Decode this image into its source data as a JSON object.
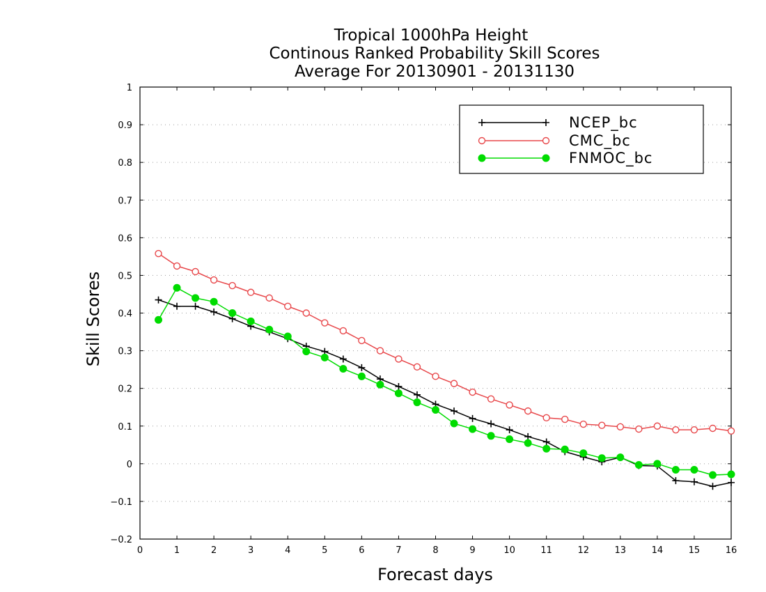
{
  "chart_data": {
    "type": "line",
    "title": [
      "Tropical 1000hPa Height",
      "Continous Ranked Probability Skill Scores",
      "Average For 20130901 - 20131130"
    ],
    "xlabel": "Forecast days",
    "ylabel": "Skill Scores",
    "xlim": [
      0,
      16
    ],
    "ylim": [
      -0.2,
      1
    ],
    "xticks": [
      0,
      1,
      2,
      3,
      4,
      5,
      6,
      7,
      8,
      9,
      10,
      11,
      12,
      13,
      14,
      15,
      16
    ],
    "xtick_labels": [
      "0",
      "1",
      "2",
      "3",
      "4",
      "5",
      "6",
      "7",
      "8",
      "9",
      "10",
      "11",
      "12",
      "13",
      "14",
      "15",
      "16"
    ],
    "yticks": [
      -0.2,
      -0.1,
      0,
      0.1,
      0.2,
      0.3,
      0.4,
      0.5,
      0.6,
      0.7,
      0.8,
      0.9,
      1
    ],
    "ytick_labels": [
      "−0.2",
      "−0.1",
      "0",
      "0.1",
      "0.2",
      "0.3",
      "0.4",
      "0.5",
      "0.6",
      "0.7",
      "0.8",
      "0.9",
      "1"
    ],
    "grid": "horizontal dotted",
    "legend_position": "top-right",
    "x": [
      0.5,
      1,
      1.5,
      2,
      2.5,
      3,
      3.5,
      4,
      4.5,
      5,
      5.5,
      6,
      6.5,
      7,
      7.5,
      8,
      8.5,
      9,
      9.5,
      10,
      10.5,
      11,
      11.5,
      12,
      12.5,
      13,
      13.5,
      14,
      14.5,
      15,
      15.5,
      16
    ],
    "series": [
      {
        "name": "NCEP_bc",
        "color": "#000000",
        "marker": "plus",
        "values": [
          0.435,
          0.418,
          0.418,
          0.403,
          0.385,
          0.365,
          0.35,
          0.332,
          0.312,
          0.298,
          0.278,
          0.255,
          0.225,
          0.205,
          0.183,
          0.158,
          0.14,
          0.12,
          0.106,
          0.09,
          0.072,
          0.058,
          0.032,
          0.018,
          0.005,
          0.017,
          -0.005,
          -0.006,
          -0.045,
          -0.048,
          -0.06,
          -0.05
        ]
      },
      {
        "name": "CMC_bc",
        "color": "#e8474a",
        "marker": "open-circle",
        "values": [
          0.558,
          0.525,
          0.51,
          0.488,
          0.473,
          0.455,
          0.44,
          0.418,
          0.4,
          0.374,
          0.353,
          0.327,
          0.3,
          0.278,
          0.257,
          0.232,
          0.213,
          0.19,
          0.172,
          0.156,
          0.14,
          0.122,
          0.118,
          0.105,
          0.102,
          0.098,
          0.092,
          0.1,
          0.09,
          0.09,
          0.094,
          0.087
        ]
      },
      {
        "name": "FNMOC_bc",
        "color": "#00dc00",
        "marker": "filled-circle",
        "values": [
          0.382,
          0.467,
          0.44,
          0.43,
          0.4,
          0.378,
          0.356,
          0.338,
          0.298,
          0.282,
          0.252,
          0.232,
          0.21,
          0.187,
          0.163,
          0.143,
          0.107,
          0.092,
          0.074,
          0.065,
          0.055,
          0.04,
          0.038,
          0.028,
          0.015,
          0.017,
          -0.003,
          0.0,
          -0.016,
          -0.016,
          -0.03,
          -0.028
        ]
      }
    ]
  }
}
